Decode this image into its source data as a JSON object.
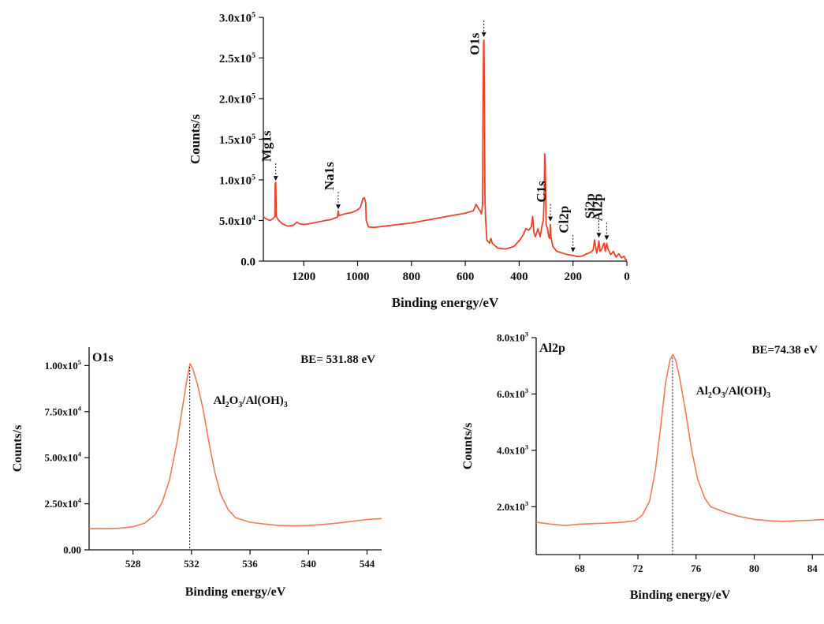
{
  "chart_data": [
    {
      "id": "survey",
      "type": "line",
      "xlabel": "Binding energy/eV",
      "ylabel": "Counts/s",
      "xlim": [
        1350,
        0
      ],
      "ylim": [
        0,
        300000
      ],
      "x_ticks": [
        {
          "v": 1200,
          "label": "1200"
        },
        {
          "v": 1000,
          "label": "1000"
        },
        {
          "v": 800,
          "label": "800"
        },
        {
          "v": 600,
          "label": "600"
        },
        {
          "v": 400,
          "label": "400"
        },
        {
          "v": 200,
          "label": "200"
        },
        {
          "v": 0,
          "label": "0"
        }
      ],
      "y_ticks": [
        {
          "v": 0,
          "m": "0.0",
          "e": ""
        },
        {
          "v": 50000,
          "m": "5.0x10",
          "e": "4"
        },
        {
          "v": 100000,
          "m": "1.0x10",
          "e": "5"
        },
        {
          "v": 150000,
          "m": "1.5x10",
          "e": "5"
        },
        {
          "v": 200000,
          "m": "2.0x10",
          "e": "5"
        },
        {
          "v": 250000,
          "m": "2.5x10",
          "e": "5"
        },
        {
          "v": 300000,
          "m": "3.0x10",
          "e": "5"
        }
      ],
      "series": [
        {
          "color": "#e8442c",
          "points": [
            [
              1350,
              55000
            ],
            [
              1340,
              52000
            ],
            [
              1325,
              50000
            ],
            [
              1315,
              52000
            ],
            [
              1307,
              55000
            ],
            [
              1306,
              95000
            ],
            [
              1304,
              97000
            ],
            [
              1302,
              55000
            ],
            [
              1295,
              51000
            ],
            [
              1280,
              46000
            ],
            [
              1260,
              43000
            ],
            [
              1240,
              44000
            ],
            [
              1225,
              48000
            ],
            [
              1215,
              46000
            ],
            [
              1200,
              45000
            ],
            [
              1180,
              46000
            ],
            [
              1150,
              48000
            ],
            [
              1120,
              50000
            ],
            [
              1100,
              51000
            ],
            [
              1085,
              53000
            ],
            [
              1075,
              54000
            ],
            [
              1072,
              62000
            ],
            [
              1069,
              56000
            ],
            [
              1050,
              58000
            ],
            [
              1020,
              60000
            ],
            [
              1000,
              63000
            ],
            [
              990,
              66000
            ],
            [
              985,
              71000
            ],
            [
              980,
              77000
            ],
            [
              975,
              78000
            ],
            [
              970,
              72000
            ],
            [
              968,
              50000
            ],
            [
              960,
              42000
            ],
            [
              940,
              41500
            ],
            [
              900,
              43000
            ],
            [
              850,
              45000
            ],
            [
              800,
              47000
            ],
            [
              750,
              50000
            ],
            [
              700,
              53000
            ],
            [
              650,
              56000
            ],
            [
              600,
              59000
            ],
            [
              570,
              62000
            ],
            [
              560,
              70000
            ],
            [
              550,
              64000
            ],
            [
              545,
              62000
            ],
            [
              540,
              58000
            ],
            [
              536,
              70000
            ],
            [
              534,
              200000
            ],
            [
              532,
              270000
            ],
            [
              531,
              272000
            ],
            [
              529,
              200000
            ],
            [
              527,
              80000
            ],
            [
              525,
              55000
            ],
            [
              520,
              26000
            ],
            [
              510,
              22000
            ],
            [
              505,
              28000
            ],
            [
              500,
              22000
            ],
            [
              480,
              16000
            ],
            [
              450,
              15000
            ],
            [
              420,
              18000
            ],
            [
              400,
              25000
            ],
            [
              385,
              32000
            ],
            [
              375,
              40000
            ],
            [
              365,
              38000
            ],
            [
              355,
              42000
            ],
            [
              350,
              55000
            ],
            [
              345,
              35000
            ],
            [
              340,
              30000
            ],
            [
              330,
              40000
            ],
            [
              322,
              30000
            ],
            [
              315,
              44000
            ],
            [
              310,
              50000
            ],
            [
              307,
              80000
            ],
            [
              305,
              132000
            ],
            [
              303,
              120000
            ],
            [
              300,
              45000
            ],
            [
              295,
              40000
            ],
            [
              290,
              30000
            ],
            [
              286,
              28000
            ],
            [
              284,
              45000
            ],
            [
              282,
              30000
            ],
            [
              275,
              18000
            ],
            [
              260,
              12000
            ],
            [
              240,
              10000
            ],
            [
              220,
              8000
            ],
            [
              200,
              7000
            ],
            [
              190,
              6000
            ],
            [
              175,
              5500
            ],
            [
              160,
              7000
            ],
            [
              150,
              9000
            ],
            [
              140,
              10000
            ],
            [
              130,
              12000
            ],
            [
              125,
              14000
            ],
            [
              120,
              26000
            ],
            [
              117,
              20000
            ],
            [
              112,
              10000
            ],
            [
              108,
              16000
            ],
            [
              104,
              25000
            ],
            [
              100,
              12000
            ],
            [
              95,
              14000
            ],
            [
              90,
              18000
            ],
            [
              85,
              22000
            ],
            [
              80,
              12000
            ],
            [
              75,
              22000
            ],
            [
              70,
              15000
            ],
            [
              60,
              8000
            ],
            [
              50,
              12000
            ],
            [
              40,
              5000
            ],
            [
              30,
              9000
            ],
            [
              20,
              4000
            ],
            [
              10,
              6000
            ],
            [
              5,
              2000
            ],
            [
              0,
              1500
            ]
          ]
        }
      ],
      "annotations": [
        {
          "text": "Mg1s",
          "x": 1304,
          "y": 95000
        },
        {
          "text": "Na1s",
          "x": 1072,
          "y": 60000
        },
        {
          "text": "O1s",
          "x": 531,
          "y": 272000
        },
        {
          "text": "C1s",
          "x": 284,
          "y": 45000
        },
        {
          "text": "Cl2p",
          "x": 200,
          "y": 7000
        },
        {
          "text": "Si2p",
          "x": 104,
          "y": 25000
        },
        {
          "text": "Al2p",
          "x": 75,
          "y": 22000
        }
      ]
    },
    {
      "id": "o1s",
      "type": "line",
      "xlabel": "Binding energy/eV",
      "ylabel": "Counts/s",
      "xlim": [
        525,
        545
      ],
      "ylim": [
        0,
        110000
      ],
      "x_ticks": [
        {
          "v": 528,
          "label": "528"
        },
        {
          "v": 532,
          "label": "532"
        },
        {
          "v": 536,
          "label": "536"
        },
        {
          "v": 540,
          "label": "540"
        },
        {
          "v": 544,
          "label": "544"
        }
      ],
      "y_ticks": [
        {
          "v": 0,
          "m": "0.00",
          "e": ""
        },
        {
          "v": 25000,
          "m": "2.50x10",
          "e": "4"
        },
        {
          "v": 50000,
          "m": "5.00x10",
          "e": "4"
        },
        {
          "v": 75000,
          "m": "7.50x10",
          "e": "4"
        },
        {
          "v": 100000,
          "m": "1.00x10",
          "e": "5"
        }
      ],
      "series": [
        {
          "color": "#f07a5c",
          "points": [
            [
              525,
              11500
            ],
            [
              526,
              11500
            ],
            [
              527,
              11700
            ],
            [
              528,
              12500
            ],
            [
              528.8,
              14500
            ],
            [
              529.5,
              19000
            ],
            [
              530,
              26000
            ],
            [
              530.5,
              38000
            ],
            [
              531,
              58000
            ],
            [
              531.4,
              78000
            ],
            [
              531.7,
              93000
            ],
            [
              531.9,
              101000
            ],
            [
              532.1,
              98000
            ],
            [
              532.4,
              90000
            ],
            [
              532.8,
              76000
            ],
            [
              533.2,
              58000
            ],
            [
              533.6,
              42000
            ],
            [
              534,
              30000
            ],
            [
              534.5,
              22000
            ],
            [
              535,
              17500
            ],
            [
              536,
              15000
            ],
            [
              537,
              14000
            ],
            [
              538,
              13200
            ],
            [
              539,
              13000
            ],
            [
              540,
              13200
            ],
            [
              541,
              13800
            ],
            [
              542,
              14500
            ],
            [
              543,
              15500
            ],
            [
              544,
              16500
            ],
            [
              545,
              17000
            ]
          ]
        }
      ],
      "corner_label": "O1s",
      "be_label": "BE= 531.88 eV",
      "peak_x": 531.88,
      "compound": {
        "a": "Al",
        "s1": "2",
        "b": "O",
        "s2": "3",
        "c": "/Al(OH)",
        "s3": "3"
      }
    },
    {
      "id": "al2p",
      "type": "line",
      "xlabel": "Binding energy/eV",
      "ylabel": "Counts/s",
      "xlim": [
        65,
        84.8
      ],
      "ylim": [
        300,
        8000
      ],
      "x_ticks": [
        {
          "v": 68,
          "label": "68"
        },
        {
          "v": 72,
          "label": "72"
        },
        {
          "v": 76,
          "label": "76"
        },
        {
          "v": 80,
          "label": "80"
        },
        {
          "v": 84,
          "label": "84"
        }
      ],
      "y_ticks": [
        {
          "v": 2000,
          "m": "2.0x10",
          "e": "3"
        },
        {
          "v": 4000,
          "m": "4.0x10",
          "e": "3"
        },
        {
          "v": 6000,
          "m": "6.0x10",
          "e": "3"
        },
        {
          "v": 8000,
          "m": "8.0x10",
          "e": "3"
        }
      ],
      "series": [
        {
          "color": "#f07a5c",
          "points": [
            [
              65,
              1450
            ],
            [
              66,
              1380
            ],
            [
              67,
              1330
            ],
            [
              68,
              1380
            ],
            [
              69,
              1400
            ],
            [
              70,
              1420
            ],
            [
              71,
              1450
            ],
            [
              71.8,
              1500
            ],
            [
              72.3,
              1700
            ],
            [
              72.8,
              2200
            ],
            [
              73.2,
              3300
            ],
            [
              73.6,
              5000
            ],
            [
              73.9,
              6400
            ],
            [
              74.2,
              7200
            ],
            [
              74.4,
              7400
            ],
            [
              74.6,
              7200
            ],
            [
              74.9,
              6500
            ],
            [
              75.3,
              5300
            ],
            [
              75.7,
              4000
            ],
            [
              76.1,
              3000
            ],
            [
              76.6,
              2300
            ],
            [
              77,
              2000
            ],
            [
              77.5,
              1900
            ],
            [
              78,
              1800
            ],
            [
              79,
              1650
            ],
            [
              80,
              1550
            ],
            [
              81,
              1500
            ],
            [
              82,
              1480
            ],
            [
              83,
              1500
            ],
            [
              84,
              1520
            ],
            [
              84.8,
              1550
            ]
          ]
        }
      ],
      "corner_label": "Al2p",
      "be_label": "BE=74.38 eV",
      "peak_x": 74.38,
      "compound": {
        "a": "Al",
        "s1": "2",
        "b": "O",
        "s2": "3",
        "c": "/Al(OH)",
        "s3": "3"
      }
    }
  ]
}
